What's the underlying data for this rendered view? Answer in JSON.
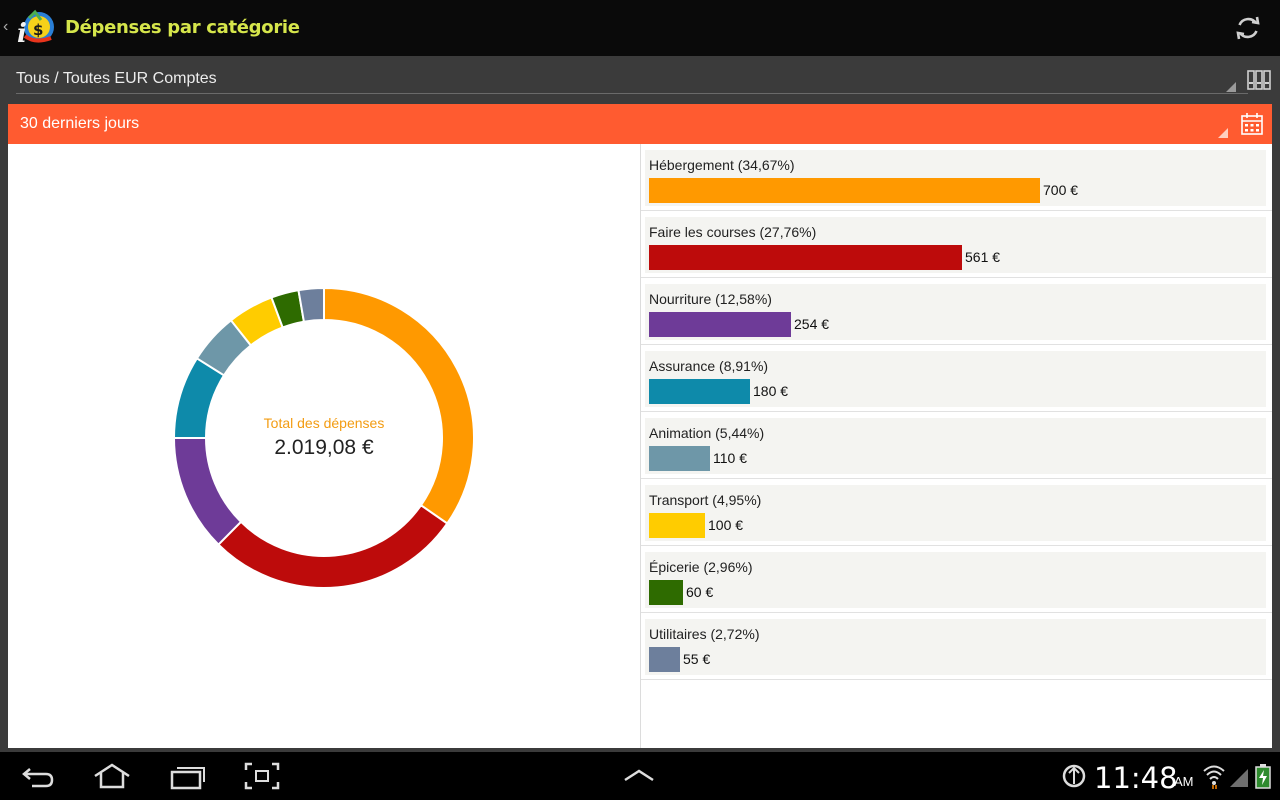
{
  "actionbar": {
    "title": "Dépenses par catégorie",
    "logo_icon": "app-logo-icon",
    "refresh_icon": "refresh-icon"
  },
  "accounts": {
    "label": "Tous / Toutes EUR Comptes",
    "icon": "accounts-icon"
  },
  "period": {
    "label": "30 derniers jours",
    "icon": "calendar-icon",
    "color": "#ff5b30"
  },
  "summary": {
    "total_label": "Total des dépenses",
    "total_value": "2.019,08 €"
  },
  "chart_data": {
    "type": "pie",
    "style": "donut",
    "categories": [
      "Hébergement",
      "Faire les courses",
      "Nourriture",
      "Assurance",
      "Animation",
      "Transport",
      "Épicerie",
      "Utilitaires"
    ],
    "values": [
      700,
      561,
      254,
      180,
      110,
      100,
      60,
      55
    ],
    "percentages": [
      34.67,
      27.76,
      12.58,
      8.91,
      5.44,
      4.95,
      2.96,
      2.72
    ],
    "colors": [
      "#ff9900",
      "#bd0b0b",
      "#6e3b98",
      "#0e8aaa",
      "#6e97a8",
      "#ffcc00",
      "#2e6b00",
      "#6d7f9c"
    ]
  },
  "categories": [
    {
      "label": "Hébergement (34,67%)",
      "value": "700 €"
    },
    {
      "label": "Faire les courses (27,76%)",
      "value": "561 €"
    },
    {
      "label": "Nourriture (12,58%)",
      "value": "254 €"
    },
    {
      "label": "Assurance (8,91%)",
      "value": "180 €"
    },
    {
      "label": "Animation (5,44%)",
      "value": "110 €"
    },
    {
      "label": "Transport (4,95%)",
      "value": "100 €"
    },
    {
      "label": "Épicerie (2,96%)",
      "value": "60 €"
    },
    {
      "label": "Utilitaires (2,72%)",
      "value": "55 €"
    }
  ],
  "navbar": {
    "time": "11:48",
    "ampm": "AM",
    "icons": [
      "back-icon",
      "home-icon",
      "recent-apps-icon",
      "screenshot-icon",
      "up-chevron-icon",
      "usb-debug-icon",
      "wifi-icon",
      "signal-icon",
      "battery-icon"
    ]
  }
}
